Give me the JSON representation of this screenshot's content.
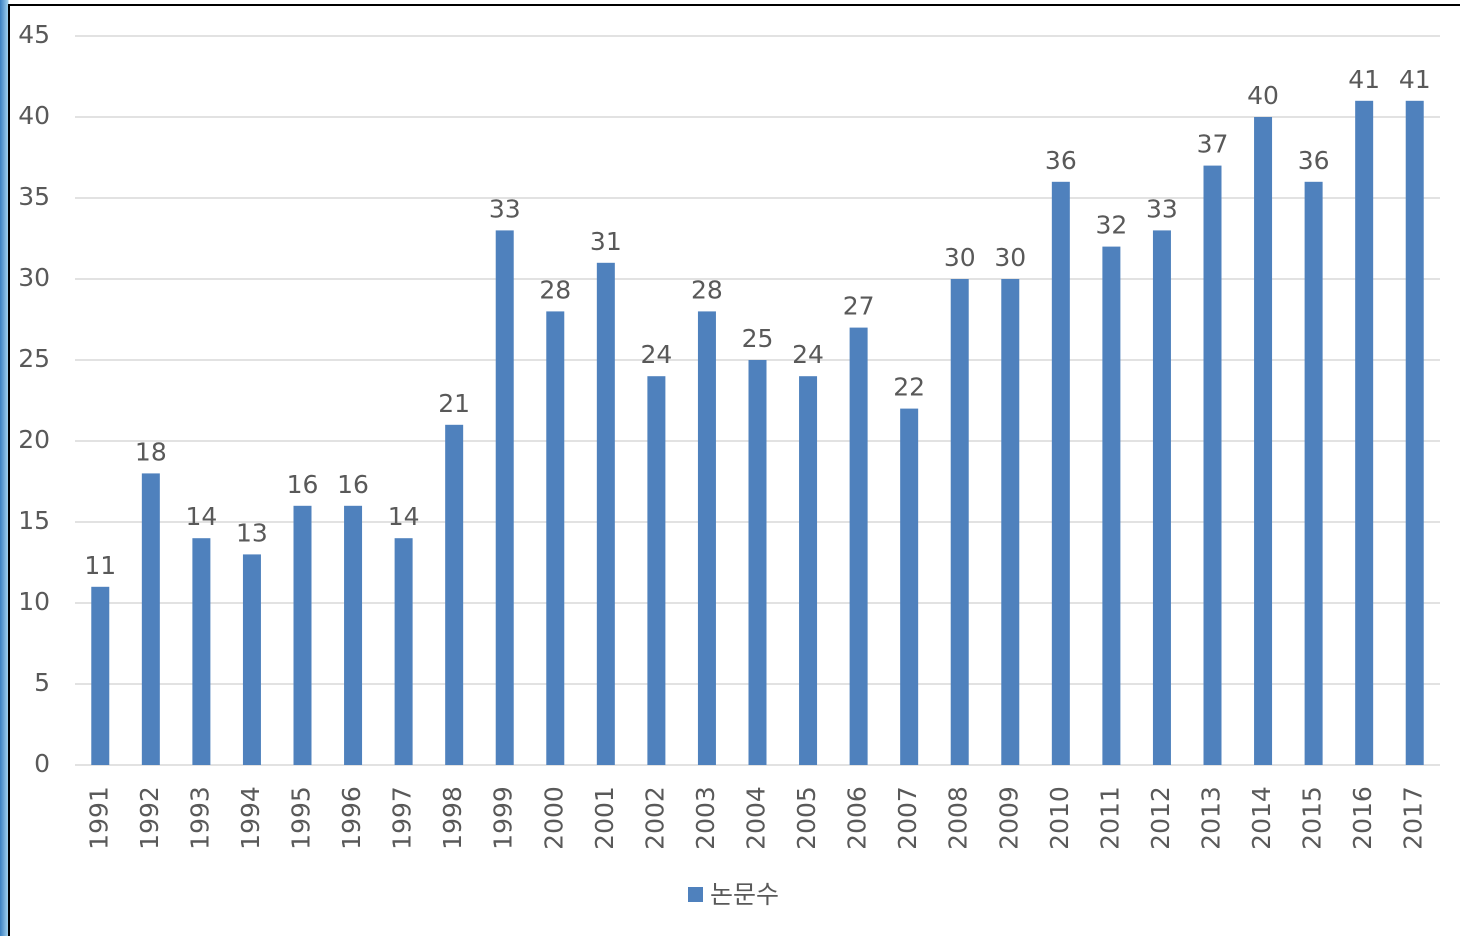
{
  "chart_data": {
    "type": "bar",
    "categories": [
      "1991",
      "1992",
      "1993",
      "1994",
      "1995",
      "1996",
      "1997",
      "1998",
      "1999",
      "2000",
      "2001",
      "2002",
      "2003",
      "2004",
      "2005",
      "2006",
      "2007",
      "2008",
      "2009",
      "2010",
      "2011",
      "2012",
      "2013",
      "2014",
      "2015",
      "2016",
      "2017"
    ],
    "series": [
      {
        "name": "논문수",
        "color": "#4f81bd",
        "values": [
          11,
          18,
          14,
          13,
          16,
          16,
          14,
          21,
          33,
          28,
          31,
          24,
          28,
          25,
          24,
          27,
          22,
          30,
          30,
          36,
          32,
          33,
          37,
          40,
          36,
          41,
          41
        ]
      }
    ],
    "ylim": [
      0,
      45
    ],
    "yticks": [
      0,
      5,
      10,
      15,
      20,
      25,
      30,
      35,
      40,
      45
    ],
    "grid": true,
    "legend": "bottom"
  }
}
